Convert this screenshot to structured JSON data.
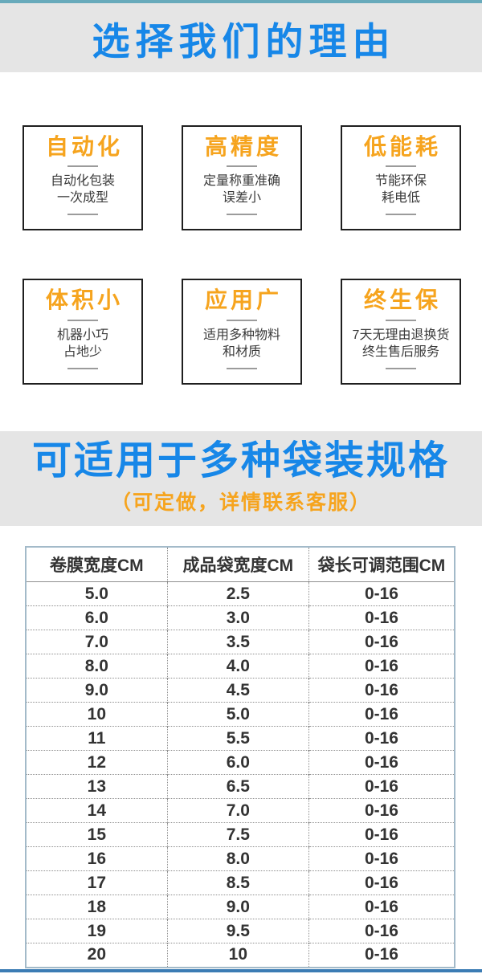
{
  "hero": {
    "title": "选择我们的理由"
  },
  "features": [
    {
      "title": "自动化",
      "lines": [
        "自动化包装",
        "一次成型"
      ]
    },
    {
      "title": "高精度",
      "lines": [
        "定量称重准确",
        "误差小"
      ]
    },
    {
      "title": "低能耗",
      "lines": [
        "节能环保",
        "耗电低"
      ]
    },
    {
      "title": "体积小",
      "lines": [
        "机器小巧",
        "占地少"
      ]
    },
    {
      "title": "应用广",
      "lines": [
        "适用多种物料",
        "和材质"
      ]
    },
    {
      "title": "终生保",
      "lines": [
        "7天无理由退换货",
        "终生售后服务"
      ]
    }
  ],
  "specs": {
    "title": "可适用于多种袋装规格",
    "subtitle": "（可定做，详情联系客服）"
  },
  "table": {
    "headers": [
      "卷膜宽度CM",
      "成品袋宽度CM",
      "袋长可调范围CM"
    ],
    "rows": [
      [
        "5.0",
        "2.5",
        "0-16"
      ],
      [
        "6.0",
        "3.0",
        "0-16"
      ],
      [
        "7.0",
        "3.5",
        "0-16"
      ],
      [
        "8.0",
        "4.0",
        "0-16"
      ],
      [
        "9.0",
        "4.5",
        "0-16"
      ],
      [
        "10",
        "5.0",
        "0-16"
      ],
      [
        "11",
        "5.5",
        "0-16"
      ],
      [
        "12",
        "6.0",
        "0-16"
      ],
      [
        "13",
        "6.5",
        "0-16"
      ],
      [
        "14",
        "7.0",
        "0-16"
      ],
      [
        "15",
        "7.5",
        "0-16"
      ],
      [
        "16",
        "8.0",
        "0-16"
      ],
      [
        "17",
        "8.5",
        "0-16"
      ],
      [
        "18",
        "9.0",
        "0-16"
      ],
      [
        "19",
        "9.5",
        "0-16"
      ],
      [
        "20",
        "10",
        "0-16"
      ]
    ]
  },
  "colors": {
    "accent_blue": "#1787e8",
    "accent_orange": "#f6a41e",
    "banner_gray": "#e5e5e5",
    "top_strip_teal": "#68aabb",
    "bottom_strip_blue": "#3c7cb4",
    "table_border_blue": "#a3bac9",
    "card_border_black": "#1f1f1f",
    "text_dark": "#333333"
  }
}
